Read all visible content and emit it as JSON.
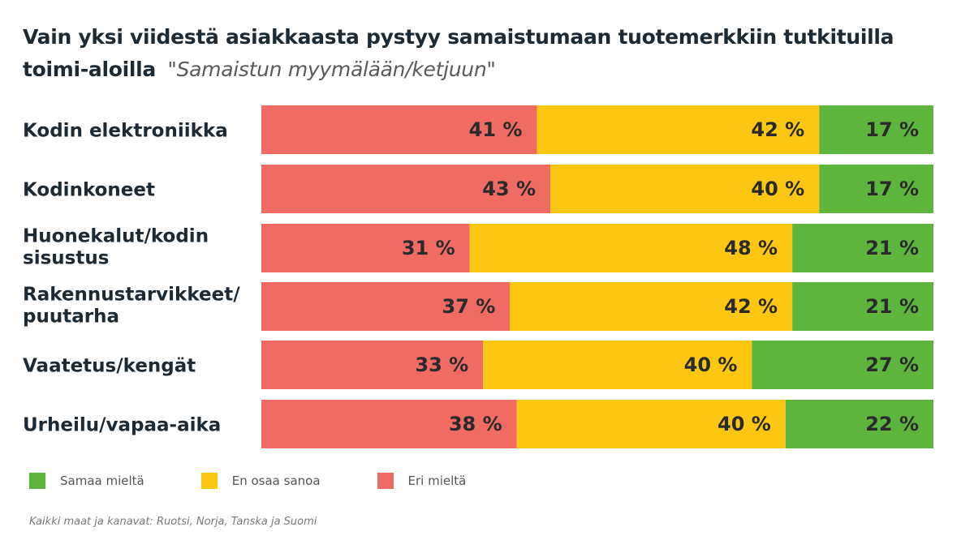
{
  "title": "Vain yksi viidestä asiakkaasta pystyy samaistumaan tuotemerkkiin tutkituilla toimi-aloilla",
  "subtitle": "\"Samaistun myymälään/ketjuun\"",
  "chart_data": {
    "type": "bar",
    "orientation": "horizontal",
    "stacked": true,
    "normalized_percent": true,
    "categories": [
      "Kodin elektroniikka",
      "Kodinkoneet",
      "Huonekalut/kodin sisustus",
      "Rakennustarvikkeet/ puutarha",
      "Vaatetus/kengät",
      "Urheilu/vapaa-aika"
    ],
    "category_lines": [
      [
        "Kodin elektroniikka"
      ],
      [
        "Kodinkoneet"
      ],
      [
        "Huonekalut/kodin",
        "sisustus"
      ],
      [
        "Rakennustarvikkeet/",
        "puutarha"
      ],
      [
        "Vaatetus/kengät"
      ],
      [
        "Urheilu/vapaa-aika"
      ]
    ],
    "series": [
      {
        "name": "Eri mieltä",
        "color": "#ef6b63",
        "values": [
          41,
          43,
          31,
          37,
          33,
          38
        ]
      },
      {
        "name": "En osaa sanoa",
        "color": "#fbc713",
        "values": [
          42,
          40,
          48,
          42,
          40,
          40
        ]
      },
      {
        "name": "Samaa mieltä",
        "color": "#5db53e",
        "values": [
          17,
          17,
          21,
          21,
          27,
          22
        ]
      }
    ],
    "value_suffix": " %",
    "legend_order": [
      "Samaa mieltä",
      "En osaa sanoa",
      "Eri mieltä"
    ],
    "legend_position": "bottom-left",
    "grid": false
  },
  "source_note": "Kaikki maat ja kanavat: Ruotsi, Norja, Tanska ja Suomi"
}
